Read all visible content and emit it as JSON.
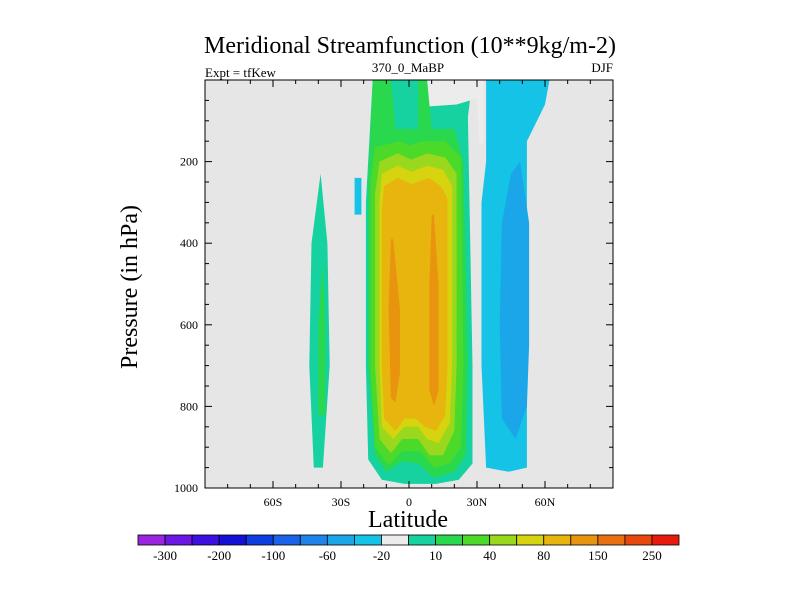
{
  "chart_data": {
    "type": "contour",
    "title": "Meridional Streamfunction (10**9kg/m-2)",
    "left_label": "Expt = tfKew",
    "center_label": "370_0_MaBP",
    "right_label": "DJF",
    "xlabel": "Latitude",
    "ylabel": "Pressure (in hPa)",
    "xlim": [
      -90,
      90
    ],
    "ylim": [
      1000,
      0
    ],
    "x_ticks": [
      {
        "value": -60,
        "label": "60S"
      },
      {
        "value": -30,
        "label": "30S"
      },
      {
        "value": 0,
        "label": "0"
      },
      {
        "value": 30,
        "label": "30N"
      },
      {
        "value": 60,
        "label": "60N"
      }
    ],
    "y_ticks": [
      {
        "value": 200,
        "label": "200"
      },
      {
        "value": 400,
        "label": "400"
      },
      {
        "value": 600,
        "label": "600"
      },
      {
        "value": 800,
        "label": "800"
      },
      {
        "value": 1000,
        "label": "1000"
      }
    ],
    "background_level_color": "#e6e6e6",
    "colorbar": {
      "colors": [
        "#9a25e0",
        "#6c17e6",
        "#3d0fe0",
        "#1410d6",
        "#0e3ee0",
        "#1a62e8",
        "#1e84ea",
        "#1aa6e8",
        "#15c3e6",
        "#ececec",
        "#15d2a0",
        "#2ad84e",
        "#4bd92a",
        "#9ad81e",
        "#d6d40e",
        "#e8b50e",
        "#e8940e",
        "#e8700e",
        "#e8480e",
        "#e81a0e"
      ],
      "labels": [
        "-300",
        "-200",
        "-100",
        "-60",
        "-20",
        "10",
        "40",
        "80",
        "150",
        "250"
      ]
    },
    "regions": [
      {
        "level_color": "#15c3e6",
        "polygon": [
          [
            34,
            0
          ],
          [
            62,
            0
          ],
          [
            60,
            60
          ],
          [
            52,
            150
          ],
          [
            52,
            400
          ],
          [
            52,
            700
          ],
          [
            52,
            880
          ],
          [
            52,
            950
          ],
          [
            44,
            960
          ],
          [
            34,
            950
          ],
          [
            32,
            700
          ],
          [
            32,
            300
          ],
          [
            34,
            200
          ],
          [
            34,
            0
          ]
        ]
      },
      {
        "level_color": "#1aa6e8",
        "polygon": [
          [
            45,
            230
          ],
          [
            49,
            200
          ],
          [
            53,
            350
          ],
          [
            53,
            650
          ],
          [
            52,
            800
          ],
          [
            47,
            880
          ],
          [
            41,
            830
          ],
          [
            40,
            600
          ],
          [
            41,
            350
          ],
          [
            45,
            230
          ]
        ]
      },
      {
        "level_color": "#1aa6e8",
        "polygon": [
          [
            49,
            700
          ],
          [
            52,
            700
          ],
          [
            52,
            800
          ],
          [
            50,
            810
          ],
          [
            49,
            700
          ]
        ]
      },
      {
        "level_color": "#15c3e6",
        "polygon": [
          [
            -24,
            240
          ],
          [
            -21,
            240
          ],
          [
            -21,
            330
          ],
          [
            -24,
            330
          ],
          [
            -24,
            240
          ]
        ]
      },
      {
        "level_color": "#15d2a0",
        "polygon": [
          [
            -42,
            950
          ],
          [
            -38,
            950
          ],
          [
            -35,
            700
          ],
          [
            -36,
            400
          ],
          [
            -39,
            230
          ],
          [
            -43,
            400
          ],
          [
            -44,
            700
          ],
          [
            -42,
            950
          ]
        ]
      },
      {
        "level_color": "#2ad84e",
        "polygon": [
          [
            -40,
            820
          ],
          [
            -37,
            820
          ],
          [
            -37,
            600
          ],
          [
            -38,
            440
          ],
          [
            -40,
            600
          ],
          [
            -40,
            820
          ]
        ]
      },
      {
        "level_color": "#15d2a0",
        "polygon": [
          [
            -16,
            0
          ],
          [
            28,
            0
          ],
          [
            26,
            90
          ],
          [
            28,
            700
          ],
          [
            28,
            940
          ],
          [
            22,
            980
          ],
          [
            12,
            990
          ],
          [
            -2,
            990
          ],
          [
            -12,
            980
          ],
          [
            -18,
            930
          ],
          [
            -19,
            700
          ],
          [
            -19,
            300
          ],
          [
            -16,
            0
          ]
        ]
      },
      {
        "level_color": "#ececec",
        "polygon": [
          [
            6,
            0
          ],
          [
            33,
            0
          ],
          [
            33,
            150
          ],
          [
            31,
            160
          ],
          [
            30,
            45
          ],
          [
            21,
            60
          ],
          [
            8,
            65
          ],
          [
            6,
            0
          ]
        ]
      },
      {
        "level_color": "#2ad84e",
        "polygon": [
          [
            -16,
            0
          ],
          [
            -8,
            0
          ],
          [
            -6,
            120
          ],
          [
            4,
            120
          ],
          [
            4,
            0
          ],
          [
            8,
            0
          ],
          [
            10,
            120
          ],
          [
            20,
            120
          ],
          [
            24,
            200
          ],
          [
            26,
            700
          ],
          [
            25,
            920
          ],
          [
            20,
            960
          ],
          [
            11,
            975
          ],
          [
            4,
            940
          ],
          [
            -3,
            935
          ],
          [
            -10,
            960
          ],
          [
            -15,
            920
          ],
          [
            -18,
            700
          ],
          [
            -18,
            250
          ],
          [
            -16,
            0
          ]
        ]
      },
      {
        "level_color": "#4bd92a",
        "polygon": [
          [
            -15,
            165
          ],
          [
            -4,
            150
          ],
          [
            0,
            160
          ],
          [
            6,
            150
          ],
          [
            16,
            150
          ],
          [
            23,
            190
          ],
          [
            24,
            700
          ],
          [
            23,
            900
          ],
          [
            18,
            940
          ],
          [
            11,
            950
          ],
          [
            5,
            910
          ],
          [
            -3,
            910
          ],
          [
            -9,
            945
          ],
          [
            -15,
            900
          ],
          [
            -17,
            700
          ],
          [
            -17,
            250
          ],
          [
            -15,
            165
          ]
        ]
      },
      {
        "level_color": "#9ad81e",
        "polygon": [
          [
            -13,
            200
          ],
          [
            -5,
            180
          ],
          [
            1,
            195
          ],
          [
            8,
            180
          ],
          [
            16,
            190
          ],
          [
            21,
            230
          ],
          [
            21,
            700
          ],
          [
            20,
            860
          ],
          [
            15,
            920
          ],
          [
            9,
            920
          ],
          [
            4,
            880
          ],
          [
            -3,
            880
          ],
          [
            -8,
            915
          ],
          [
            -13,
            880
          ],
          [
            -15,
            700
          ],
          [
            -15,
            280
          ],
          [
            -13,
            200
          ]
        ]
      },
      {
        "level_color": "#d6d40e",
        "polygon": [
          [
            -12,
            230
          ],
          [
            -5,
            210
          ],
          [
            1,
            225
          ],
          [
            8,
            210
          ],
          [
            15,
            220
          ],
          [
            19,
            260
          ],
          [
            19,
            700
          ],
          [
            18,
            840
          ],
          [
            13,
            890
          ],
          [
            8,
            880
          ],
          [
            4,
            850
          ],
          [
            -2,
            850
          ],
          [
            -7,
            880
          ],
          [
            -12,
            850
          ],
          [
            -13,
            700
          ],
          [
            -13,
            300
          ],
          [
            -12,
            230
          ]
        ]
      },
      {
        "level_color": "#e8b50e",
        "polygon": [
          [
            -11,
            260
          ],
          [
            -5,
            240
          ],
          [
            1,
            255
          ],
          [
            9,
            240
          ],
          [
            14,
            260
          ],
          [
            17,
            290
          ],
          [
            17,
            700
          ],
          [
            16,
            820
          ],
          [
            12,
            860
          ],
          [
            7,
            850
          ],
          [
            3,
            830
          ],
          [
            -2,
            830
          ],
          [
            -6,
            860
          ],
          [
            -11,
            830
          ],
          [
            -12,
            700
          ],
          [
            -12,
            320
          ],
          [
            -11,
            260
          ]
        ]
      },
      {
        "level_color": "#e8940e",
        "polygon": [
          [
            -8,
            390
          ],
          [
            -7,
            390
          ],
          [
            -4,
            560
          ],
          [
            -4,
            720
          ],
          [
            -6,
            790
          ],
          [
            -8,
            780
          ],
          [
            -9,
            560
          ],
          [
            -8,
            390
          ]
        ]
      },
      {
        "level_color": "#e8940e",
        "polygon": [
          [
            10,
            330
          ],
          [
            11,
            330
          ],
          [
            13,
            500
          ],
          [
            13,
            760
          ],
          [
            11,
            800
          ],
          [
            9,
            760
          ],
          [
            9,
            500
          ],
          [
            10,
            330
          ]
        ]
      }
    ]
  }
}
